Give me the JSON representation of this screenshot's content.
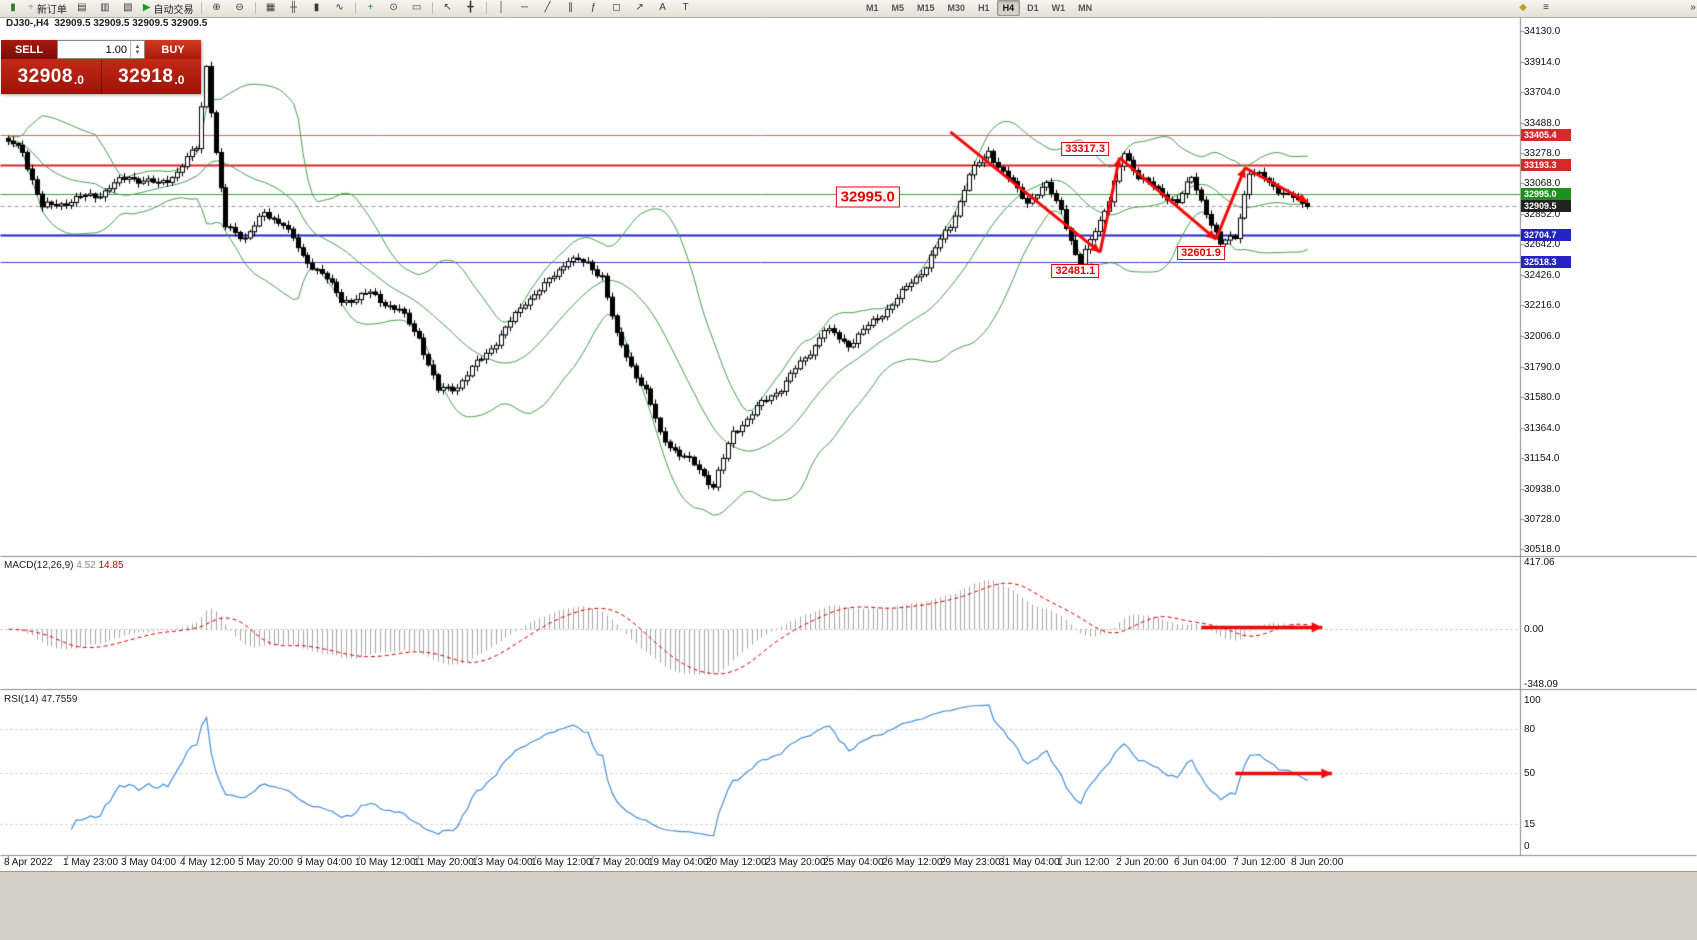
{
  "toolbar": {
    "left_items": [
      {
        "type": "icon",
        "name": "candlestick-chart-icon",
        "glyph": "▮",
        "color": "#2e7d32"
      },
      {
        "type": "button",
        "name": "new-order-button",
        "glyph": "+",
        "color": "#c79410",
        "label": "新订单"
      },
      {
        "type": "icon",
        "name": "chart-window-icon",
        "glyph": "▤",
        "color": "#3a3a3a"
      },
      {
        "type": "icon",
        "name": "profiles-icon",
        "glyph": "▥",
        "color": "#3a3a3a"
      },
      {
        "type": "icon",
        "name": "data-window-icon",
        "glyph": "▧",
        "color": "#3a3a3a"
      },
      {
        "type": "button",
        "name": "auto-trading-button",
        "glyph": "▶",
        "color": "#1d9b1d",
        "label": "自动交易"
      },
      {
        "type": "sep"
      },
      {
        "type": "icon",
        "name": "zoom-in-icon",
        "glyph": "⊕",
        "color": "#3a3a3a"
      },
      {
        "type": "icon",
        "name": "zoom-out-icon",
        "glyph": "⊖",
        "color": "#3a3a3a"
      },
      {
        "type": "sep"
      },
      {
        "type": "icon",
        "name": "grid-icon",
        "glyph": "▦",
        "color": "#3a3a3a"
      },
      {
        "type": "icon",
        "name": "bar-chart-type-icon",
        "glyph": "╫",
        "color": "#3a3a3a"
      },
      {
        "type": "icon",
        "name": "candlestick-type-icon",
        "glyph": "▮",
        "color": "#3a3a3a"
      },
      {
        "type": "icon",
        "name": "line-chart-type-icon",
        "glyph": "∿",
        "color": "#3a3a3a"
      },
      {
        "type": "sep"
      },
      {
        "type": "icon",
        "name": "add-indicator-icon",
        "glyph": "+",
        "color": "#1d9b1d"
      },
      {
        "type": "icon",
        "name": "periods-icon",
        "glyph": "⊙",
        "color": "#3a3a3a"
      },
      {
        "type": "icon",
        "name": "templates-icon",
        "glyph": "▭",
        "color": "#3a3a3a"
      },
      {
        "type": "sep"
      },
      {
        "type": "icon",
        "name": "cursor-icon",
        "glyph": "↖",
        "color": "#3a3a3a"
      },
      {
        "type": "icon",
        "name": "crosshair-icon",
        "glyph": "╋",
        "color": "#3a3a3a"
      },
      {
        "type": "sep"
      },
      {
        "type": "icon",
        "name": "vertical-line-icon",
        "glyph": "│",
        "color": "#3a3a3a"
      },
      {
        "type": "icon",
        "name": "horizontal-line-icon",
        "glyph": "─",
        "color": "#3a3a3a"
      },
      {
        "type": "icon",
        "name": "trendline-icon",
        "glyph": "╱",
        "color": "#3a3a3a"
      },
      {
        "type": "icon",
        "name": "channel-icon",
        "glyph": "∥",
        "color": "#3a3a3a"
      },
      {
        "type": "icon",
        "name": "fibonacci-icon",
        "glyph": "ƒ",
        "color": "#3a3a3a"
      },
      {
        "type": "icon",
        "name": "shapes-icon",
        "glyph": "◻",
        "color": "#3a3a3a"
      },
      {
        "type": "icon",
        "name": "arrow-tool-icon",
        "glyph": "↗",
        "color": "#3a3a3a"
      },
      {
        "type": "icon",
        "name": "text-icon",
        "glyph": "A",
        "color": "#3a3a3a"
      },
      {
        "type": "icon",
        "name": "text-label-icon",
        "glyph": "T",
        "color": "#3a3a3a"
      }
    ],
    "timeframes": {
      "items": [
        "M1",
        "M5",
        "M15",
        "M30",
        "H1",
        "H4",
        "D1",
        "W1",
        "MN"
      ],
      "active": "H4"
    },
    "right_items": [
      {
        "type": "icon",
        "name": "community-icon",
        "glyph": "◆",
        "color": "#c59b22"
      },
      {
        "type": "icon",
        "name": "settings-icon",
        "glyph": "≡",
        "color": "#3a3a3a"
      }
    ],
    "overflow_icon": {
      "name": "toolbar-overflow-icon",
      "glyph": "»",
      "color": "#3a3a3a"
    }
  },
  "chart_header": {
    "symbol": "DJ30-,H4",
    "ohlc": "32909.5 32909.5 32909.5 32909.5"
  },
  "trade_panel": {
    "sell_label": "SELL",
    "buy_label": "BUY",
    "volume": "1.00",
    "sell_price_main": "32908",
    "sell_price_frac": ".0",
    "buy_price_main": "32918",
    "buy_price_frac": ".0"
  },
  "panes": {
    "macd": {
      "name": "MACD(12,26,9)",
      "value1": "4.52",
      "value2": "14.85",
      "scale": [
        {
          "text": "417.06",
          "value": 417.06
        },
        {
          "text": "0.00",
          "value": 0
        },
        {
          "text": "-348.09",
          "value": -348.09
        }
      ]
    },
    "rsi": {
      "name": "RSI(14)",
      "value": "47.7559",
      "scale": [
        {
          "text": "100",
          "value": 100
        },
        {
          "text": "80",
          "value": 80
        },
        {
          "text": "50",
          "value": 50
        },
        {
          "text": "15",
          "value": 15
        },
        {
          "text": "0",
          "value": 0
        }
      ],
      "levels": [
        80,
        50,
        15
      ]
    }
  },
  "chart_data": {
    "type": "candlestick",
    "symbol": "DJ30-",
    "timeframe": "H4",
    "last_price": 32909.5,
    "num_candles": 270,
    "price_anchors": [
      [
        0,
        33380
      ],
      [
        4,
        33300
      ],
      [
        8,
        32900
      ],
      [
        14,
        32950
      ],
      [
        20,
        33000
      ],
      [
        26,
        33120
      ],
      [
        32,
        33060
      ],
      [
        36,
        33150
      ],
      [
        40,
        33320
      ],
      [
        42,
        33900
      ],
      [
        44,
        33280
      ],
      [
        46,
        32760
      ],
      [
        50,
        32700
      ],
      [
        54,
        32850
      ],
      [
        58,
        32800
      ],
      [
        62,
        32550
      ],
      [
        66,
        32450
      ],
      [
        70,
        32250
      ],
      [
        76,
        32300
      ],
      [
        82,
        32180
      ],
      [
        86,
        32000
      ],
      [
        90,
        31620
      ],
      [
        94,
        31660
      ],
      [
        99,
        31850
      ],
      [
        104,
        32050
      ],
      [
        108,
        32250
      ],
      [
        112,
        32350
      ],
      [
        117,
        32550
      ],
      [
        121,
        32500
      ],
      [
        124,
        32430
      ],
      [
        127,
        32000
      ],
      [
        130,
        31800
      ],
      [
        133,
        31620
      ],
      [
        136,
        31320
      ],
      [
        140,
        31180
      ],
      [
        144,
        31080
      ],
      [
        147,
        30960
      ],
      [
        151,
        31330
      ],
      [
        156,
        31500
      ],
      [
        161,
        31650
      ],
      [
        166,
        31850
      ],
      [
        170,
        32050
      ],
      [
        175,
        31950
      ],
      [
        180,
        32100
      ],
      [
        186,
        32300
      ],
      [
        191,
        32500
      ],
      [
        196,
        32780
      ],
      [
        200,
        33120
      ],
      [
        204,
        33300
      ],
      [
        207,
        33140
      ],
      [
        212,
        32950
      ],
      [
        216,
        33050
      ],
      [
        219,
        32900
      ],
      [
        222,
        32560
      ],
      [
        223,
        32500
      ],
      [
        226,
        32760
      ],
      [
        229,
        32950
      ],
      [
        232,
        33280
      ],
      [
        235,
        33130
      ],
      [
        239,
        33010
      ],
      [
        243,
        32950
      ],
      [
        246,
        33100
      ],
      [
        249,
        32880
      ],
      [
        252,
        32640
      ],
      [
        255,
        32700
      ],
      [
        258,
        33150
      ],
      [
        261,
        33100
      ],
      [
        265,
        33010
      ],
      [
        270,
        32909.5
      ]
    ],
    "y_ticks": [
      "34130.0",
      "33914.0",
      "33704.0",
      "33488.0",
      "33278.0",
      "33068.0",
      "32852.0",
      "32642.0",
      "32426.0",
      "32216.0",
      "32006.0",
      "31790.0",
      "31580.0",
      "31364.0",
      "31154.0",
      "30938.0",
      "30728.0",
      "30518.0"
    ],
    "x_labels": [
      "8 Apr 2022",
      "1 May 23:00",
      "3 May 04:00",
      "4 May 12:00",
      "5 May 20:00",
      "9 May 04:00",
      "10 May 12:00",
      "11 May 20:00",
      "13 May 04:00",
      "16 May 12:00",
      "17 May 20:00",
      "19 May 04:00",
      "20 May 12:00",
      "23 May 20:00",
      "25 May 04:00",
      "26 May 12:00",
      "29 May 23:00",
      "31 May 04:00",
      "1 Jun 12:00",
      "2 Jun 20:00",
      "6 Jun 04:00",
      "7 Jun 12:00",
      "8 Jun 20:00"
    ],
    "levels": [
      {
        "price": 33405.4,
        "color": "#e86060",
        "width": 1,
        "style": "solid",
        "tag_bg": "#d42a2a"
      },
      {
        "price": 33193.3,
        "color": "#dd2222",
        "width": 2,
        "style": "solid",
        "tag_bg": "#d42a2a"
      },
      {
        "price": 32995.0,
        "color": "#3aa33a",
        "width": 1,
        "style": "solid",
        "tag_bg": "#1f8f1f"
      },
      {
        "price": 32909.5,
        "color": "#9a9a9a",
        "width": 1,
        "style": "dash",
        "tag_bg": "#222222"
      },
      {
        "price": 32704.7,
        "color": "#2222cc",
        "width": 2,
        "style": "solid",
        "tag_bg": "#2424c4"
      },
      {
        "price": 32518.3,
        "color": "#4444d4",
        "width": 1,
        "style": "solid",
        "tag_bg": "#2424c4"
      }
    ],
    "bollinger": {
      "period": 20,
      "deviation": 2,
      "color": "#4a9e55"
    },
    "candle_colors": {
      "bull": "#ffffff",
      "bear": "#000000",
      "outline": "#000000"
    },
    "annotations": {
      "zigzag": {
        "color": "#f50808",
        "points": [
          [
            195,
            33430
          ],
          [
            226,
            32590
          ],
          [
            230,
            33250
          ],
          [
            250,
            32680
          ],
          [
            256,
            33180
          ],
          [
            269,
            32940
          ]
        ]
      },
      "labels": [
        {
          "text": "32995.0",
          "i": 178,
          "price": 32972,
          "size": "large"
        },
        {
          "text": "33317.3",
          "i": 223,
          "price": 33310,
          "size": "normal"
        },
        {
          "text": "32481.1",
          "i": 221,
          "price": 32455,
          "size": "normal"
        },
        {
          "text": "32601.9",
          "i": 247,
          "price": 32585,
          "size": "normal"
        }
      ],
      "macd_arrow": {
        "from_i": 247,
        "to_i": 272,
        "value": 10
      },
      "rsi_arrow": {
        "from_i": 254,
        "to_i": 274,
        "value": 50
      }
    }
  }
}
